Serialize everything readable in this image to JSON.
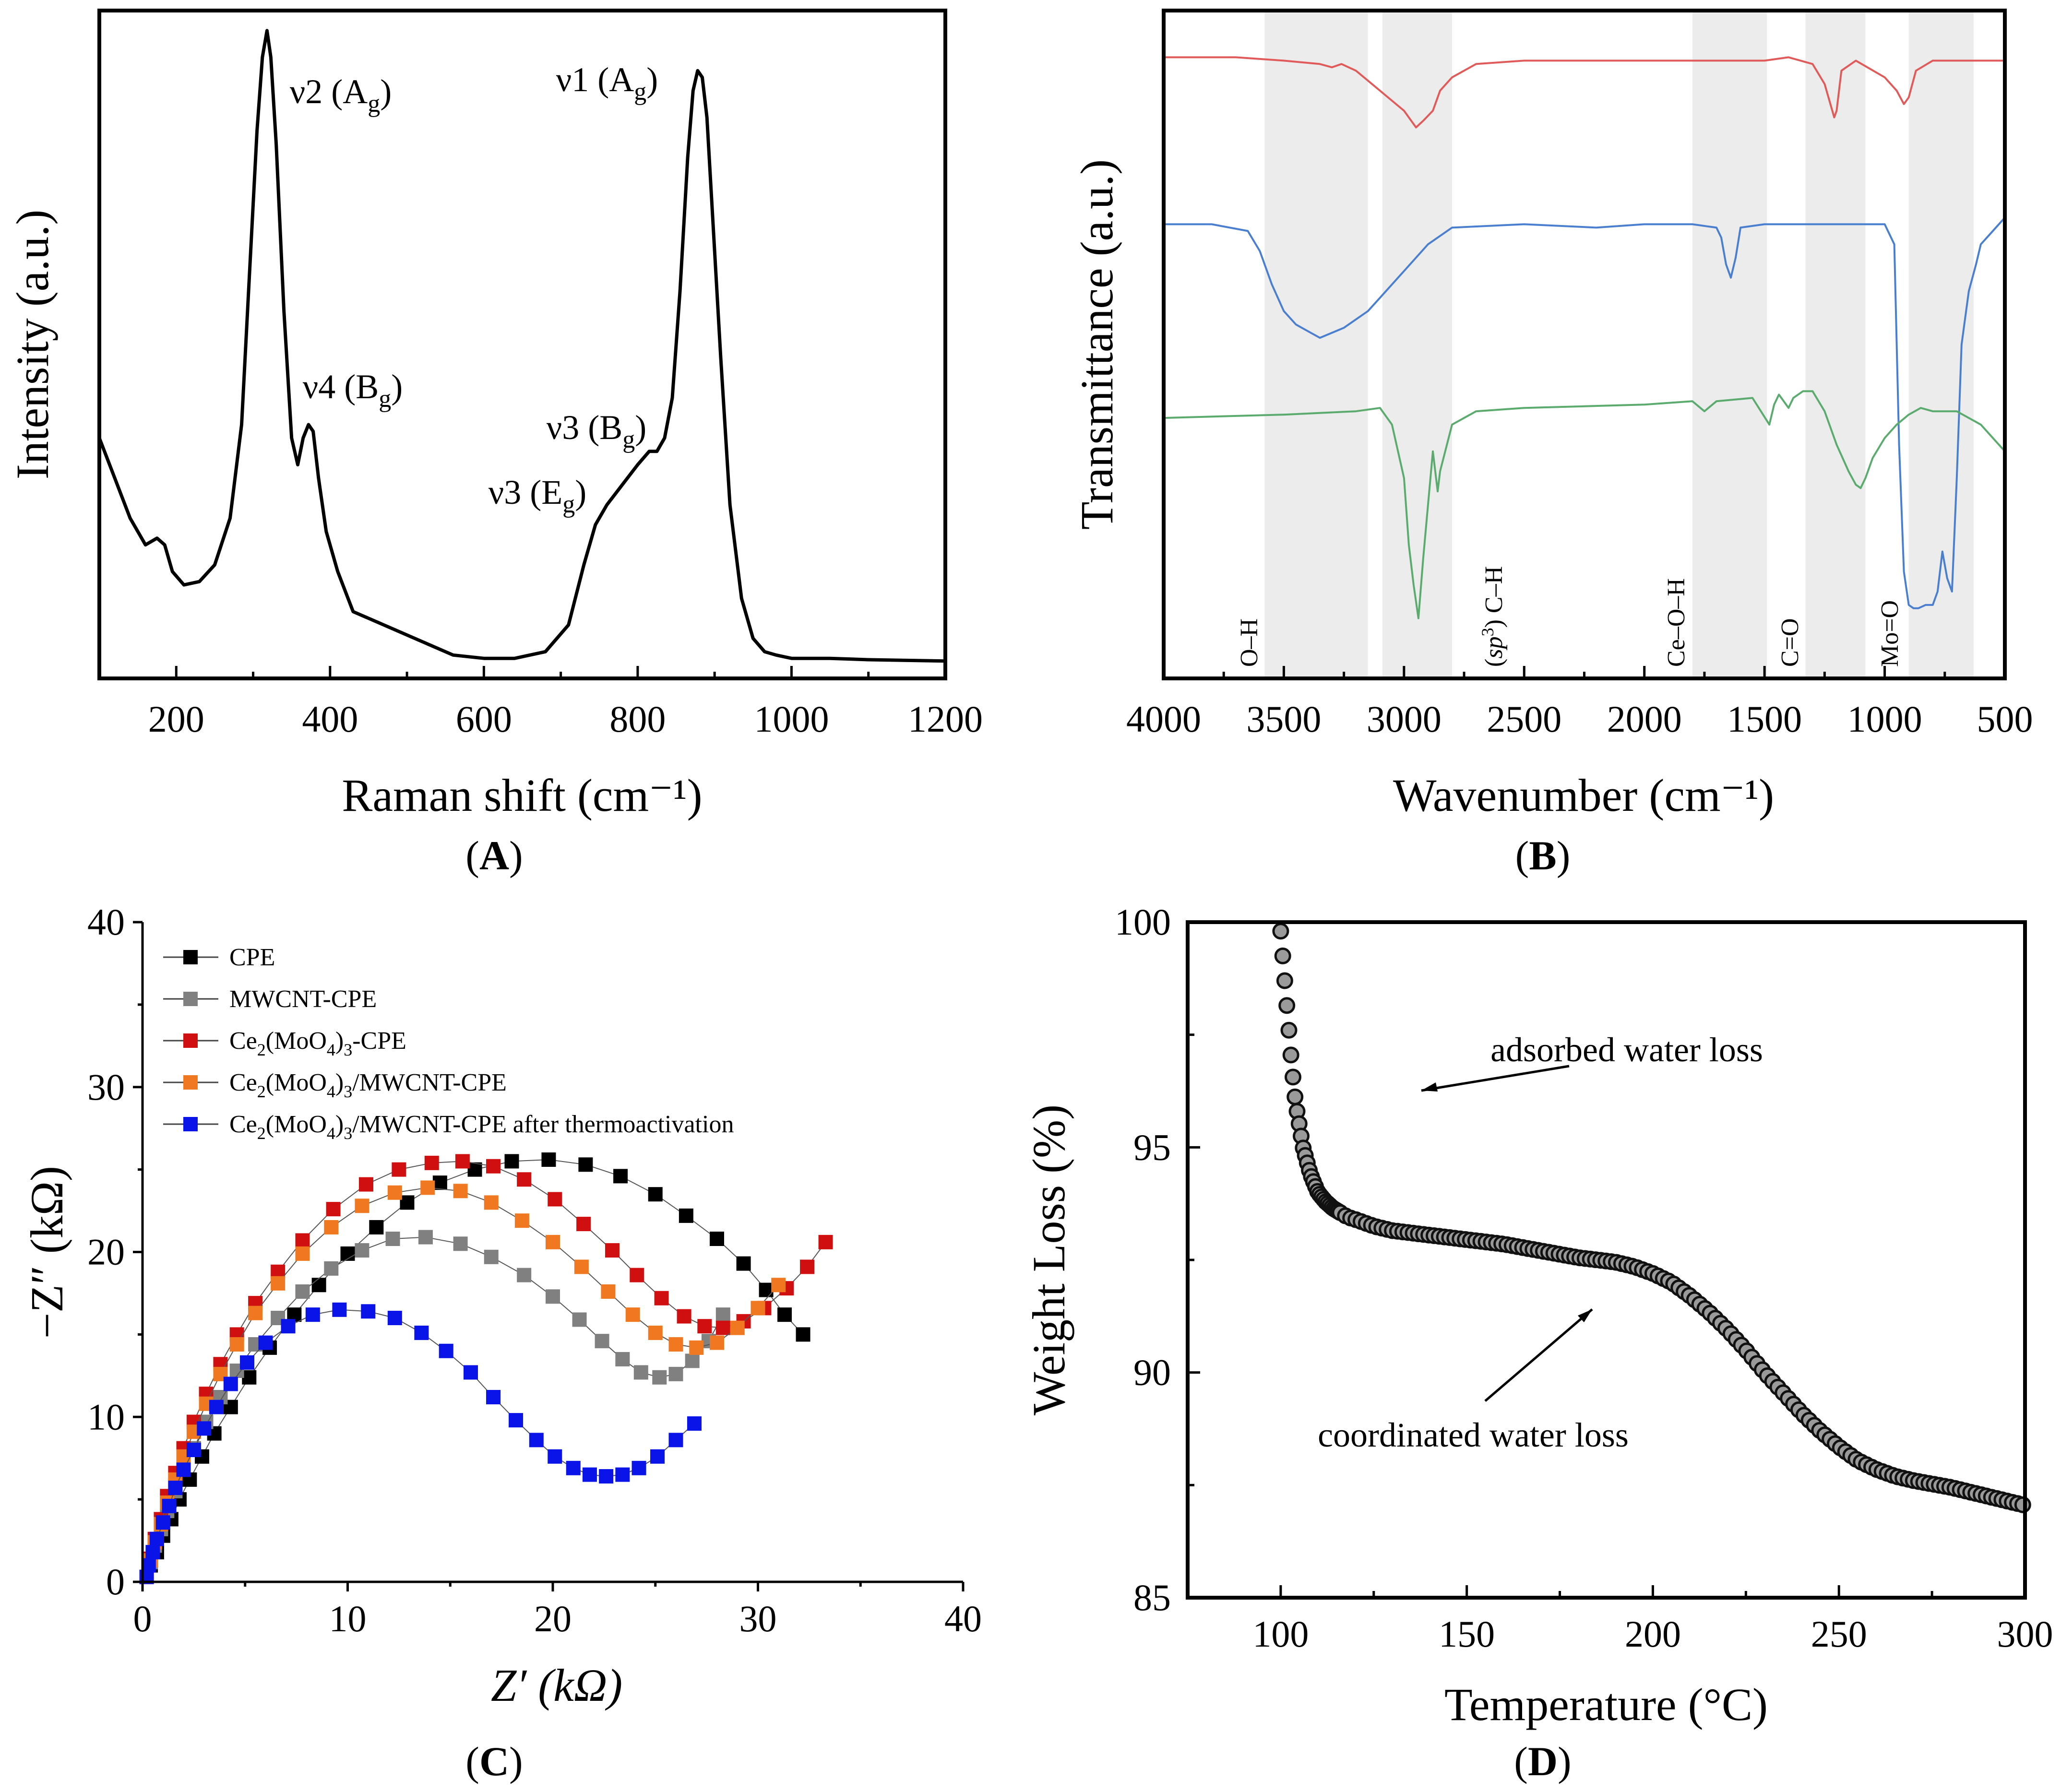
{
  "chart_data": [
    {
      "id": "A",
      "type": "line",
      "panel_label": "A",
      "xlabel": "Raman shift (cm⁻¹)",
      "ylabel": "Intensity (a.u.)",
      "xlim": [
        100,
        1200
      ],
      "ylim": [
        0,
        100
      ],
      "xticks": [
        "200",
        "400",
        "600",
        "800",
        "1000",
        "1200"
      ],
      "series": [
        {
          "name": "Raman",
          "color": "#000000",
          "x": [
            100,
            120,
            140,
            160,
            175,
            185,
            195,
            210,
            230,
            250,
            270,
            285,
            295,
            305,
            312,
            318,
            323,
            330,
            340,
            350,
            358,
            365,
            372,
            378,
            385,
            395,
            410,
            430,
            450,
            480,
            520,
            560,
            600,
            640,
            680,
            710,
            730,
            745,
            760,
            780,
            800,
            815,
            825,
            835,
            845,
            855,
            865,
            872,
            878,
            884,
            890,
            898,
            908,
            920,
            935,
            950,
            965,
            980,
            1000,
            1050,
            1100,
            1150,
            1200
          ],
          "y": [
            36,
            30,
            24,
            20,
            21,
            20,
            16,
            14,
            14.5,
            17,
            24,
            38,
            60,
            82,
            93,
            97,
            93,
            80,
            55,
            36,
            32,
            36,
            38,
            37,
            30,
            22,
            16,
            10,
            9,
            7.5,
            5.5,
            3.5,
            3,
            3,
            4,
            8,
            17,
            23,
            26,
            29,
            32,
            34,
            34,
            36,
            42,
            58,
            78,
            88,
            91,
            90,
            84,
            68,
            48,
            26,
            12,
            6,
            4,
            3.5,
            3,
            3,
            2.8,
            2.7,
            2.6
          ]
        }
      ],
      "annotations": [
        {
          "base": "ν2 (A",
          "sub": "g",
          "close": ")"
        },
        {
          "base": "ν1 (A",
          "sub": "g",
          "close": ")"
        },
        {
          "base": "ν4 (B",
          "sub": "g",
          "close": ")"
        },
        {
          "base": "ν3 (B",
          "sub": "g",
          "close": ")"
        },
        {
          "base": "ν3 (E",
          "sub": "g",
          "close": ")"
        }
      ]
    },
    {
      "id": "B",
      "type": "line",
      "panel_label": "B",
      "xlabel": "Wavenumber (cm⁻¹)",
      "ylabel": "Transmittance (a.u.)",
      "xlim": [
        4000,
        500
      ],
      "ylim": [
        0,
        100
      ],
      "xticks": [
        "4000",
        "3500",
        "3000",
        "2500",
        "2000",
        "1500",
        "1000",
        "500"
      ],
      "bands": [
        {
          "label": "O–H",
          "from": 3580,
          "to": 3150
        },
        {
          "label": "(sp³) C–H",
          "from": 3090,
          "to": 2800
        },
        {
          "label": "Ce–O–H",
          "from": 1800,
          "to": 1490
        },
        {
          "label": "C=O",
          "from": 1330,
          "to": 1080
        },
        {
          "label": "Mo=O",
          "from": 900,
          "to": 630
        }
      ],
      "series": [
        {
          "name": "red spectrum",
          "color": "#e05a5a",
          "x": [
            4000,
            3700,
            3500,
            3350,
            3300,
            3260,
            3200,
            3100,
            3000,
            2950,
            2920,
            2880,
            2850,
            2800,
            2700,
            2500,
            2000,
            1700,
            1500,
            1400,
            1300,
            1250,
            1210,
            1200,
            1180,
            1120,
            1000,
            950,
            920,
            900,
            870,
            800,
            700,
            600,
            500
          ],
          "y": [
            93,
            93,
            92.5,
            92,
            91.5,
            92,
            91,
            88,
            85,
            82.5,
            83.5,
            85,
            88,
            90,
            92,
            92.5,
            92.5,
            92.5,
            92.5,
            93,
            92,
            89,
            84,
            85,
            91,
            92.5,
            90,
            88,
            86,
            87,
            91,
            92.5,
            92.5,
            92.5,
            92.5
          ]
        },
        {
          "name": "blue spectrum",
          "color": "#4a7fd0",
          "x": [
            4000,
            3800,
            3650,
            3600,
            3550,
            3500,
            3450,
            3400,
            3350,
            3250,
            3150,
            3100,
            3000,
            2900,
            2800,
            2500,
            2200,
            2000,
            1800,
            1700,
            1680,
            1660,
            1640,
            1620,
            1600,
            1500,
            1300,
            1100,
            1000,
            960,
            940,
            920,
            900,
            880,
            860,
            830,
            800,
            780,
            760,
            740,
            720,
            700,
            680,
            650,
            620,
            600,
            550,
            500
          ],
          "y": [
            68,
            68,
            67,
            64,
            59,
            55,
            53,
            52,
            51,
            52.5,
            55,
            57,
            61,
            65,
            67.5,
            68,
            67.5,
            68,
            68,
            67.5,
            66,
            62,
            60,
            63,
            67.5,
            68,
            68,
            68,
            68,
            65,
            35,
            16,
            11,
            10.5,
            10.5,
            11,
            11,
            13,
            19,
            15,
            13,
            30,
            50,
            58,
            62,
            65,
            67,
            69
          ]
        },
        {
          "name": "green spectrum",
          "color": "#5aab6d",
          "x": [
            4000,
            3500,
            3200,
            3100,
            3050,
            3000,
            2980,
            2960,
            2940,
            2920,
            2900,
            2880,
            2860,
            2850,
            2800,
            2700,
            2500,
            2000,
            1800,
            1750,
            1700,
            1550,
            1480,
            1460,
            1440,
            1400,
            1380,
            1340,
            1300,
            1250,
            1200,
            1150,
            1120,
            1100,
            1080,
            1050,
            1000,
            950,
            900,
            850,
            800,
            700,
            600,
            550,
            500
          ],
          "y": [
            39,
            39.5,
            40,
            40.5,
            38,
            30,
            20,
            14,
            9,
            18,
            26,
            34,
            28,
            31,
            38,
            40,
            40.5,
            41,
            41.5,
            40,
            41.5,
            42,
            38,
            41,
            42.5,
            40.5,
            42,
            43,
            43,
            40,
            35,
            31,
            29,
            28.5,
            30,
            33,
            36,
            38,
            39.5,
            40.5,
            40,
            40,
            38,
            36,
            34
          ]
        }
      ]
    },
    {
      "id": "C",
      "type": "scatter",
      "panel_label": "C",
      "xlabel": "Z′ (kΩ)",
      "ylabel": "−Z″ (kΩ)",
      "xlim": [
        0,
        40
      ],
      "ylim": [
        0,
        40
      ],
      "xticks": [
        "0",
        "10",
        "20",
        "30",
        "40"
      ],
      "yticks": [
        "0",
        "10",
        "20",
        "30",
        "40"
      ],
      "legend": [
        {
          "base": "CPE",
          "parts": [
            {
              "t": "CPE",
              "sub": false
            }
          ]
        },
        {
          "base": "MWCNT-CPE",
          "parts": [
            {
              "t": "MWCNT-CPE",
              "sub": false
            }
          ]
        },
        {
          "base": "Ce2(MoO4)3-CPE",
          "parts": [
            {
              "t": "Ce",
              "sub": false
            },
            {
              "t": "2",
              "sub": true
            },
            {
              "t": "(MoO",
              "sub": false
            },
            {
              "t": "4",
              "sub": true
            },
            {
              "t": ")",
              "sub": false
            },
            {
              "t": "3",
              "sub": true
            },
            {
              "t": "-CPE",
              "sub": false
            }
          ]
        },
        {
          "base": "Ce2(MoO4)3/MWCNT-CPE",
          "parts": [
            {
              "t": "Ce",
              "sub": false
            },
            {
              "t": "2",
              "sub": true
            },
            {
              "t": "(MoO",
              "sub": false
            },
            {
              "t": "4",
              "sub": true
            },
            {
              "t": ")",
              "sub": false
            },
            {
              "t": "3",
              "sub": true
            },
            {
              "t": "/MWCNT-CPE",
              "sub": false
            }
          ]
        },
        {
          "base": "Ce2(MoO4)3/MWCNT-CPE after thermoactivation",
          "parts": [
            {
              "t": "Ce",
              "sub": false
            },
            {
              "t": "2",
              "sub": true
            },
            {
              "t": "(MoO",
              "sub": false
            },
            {
              "t": "4",
              "sub": true
            },
            {
              "t": ")",
              "sub": false
            },
            {
              "t": "3",
              "sub": true
            },
            {
              "t": "/MWCNT-CPE after thermoactivation",
              "sub": false
            }
          ]
        }
      ],
      "series": [
        {
          "name": "CPE",
          "color": "#000000",
          "x": [
            0.2,
            0.4,
            0.7,
            1.0,
            1.4,
            1.8,
            2.3,
            2.9,
            3.5,
            4.3,
            5.2,
            6.2,
            7.4,
            8.6,
            10.0,
            11.4,
            12.9,
            14.5,
            16.2,
            18.0,
            19.8,
            21.6,
            23.3,
            25.0,
            26.5,
            28.0,
            29.3,
            30.4,
            31.3,
            32.2
          ],
          "y": [
            0.3,
            1.0,
            1.8,
            2.8,
            3.8,
            5.0,
            6.2,
            7.6,
            9.0,
            10.6,
            12.4,
            14.2,
            16.2,
            18.0,
            19.9,
            21.5,
            23.0,
            24.2,
            25.0,
            25.5,
            25.6,
            25.3,
            24.6,
            23.5,
            22.2,
            20.8,
            19.3,
            17.7,
            16.2,
            15.0
          ]
        },
        {
          "name": "MWCNT-CPE",
          "color": "#808080",
          "x": [
            0.2,
            0.4,
            0.6,
            0.9,
            1.2,
            1.6,
            2.0,
            2.5,
            3.1,
            3.8,
            4.6,
            5.5,
            6.6,
            7.8,
            9.2,
            10.7,
            12.2,
            13.8,
            15.5,
            17.0,
            18.6,
            20.0,
            21.3,
            22.4,
            23.4,
            24.3,
            25.2,
            26.0,
            26.8,
            27.6,
            28.3
          ],
          "y": [
            0.3,
            1.2,
            2.2,
            3.2,
            4.3,
            5.5,
            6.8,
            8.1,
            9.7,
            11.2,
            12.8,
            14.4,
            16.0,
            17.6,
            19.0,
            20.1,
            20.8,
            20.9,
            20.5,
            19.7,
            18.6,
            17.3,
            15.9,
            14.6,
            13.5,
            12.7,
            12.4,
            12.6,
            13.4,
            14.6,
            16.2
          ]
        },
        {
          "name": "Ce2(MoO4)3-CPE",
          "color": "#d01010",
          "x": [
            0.2,
            0.4,
            0.6,
            0.9,
            1.2,
            1.6,
            2.0,
            2.5,
            3.1,
            3.8,
            4.6,
            5.5,
            6.6,
            7.8,
            9.3,
            10.9,
            12.5,
            14.1,
            15.6,
            17.1,
            18.6,
            20.1,
            21.5,
            22.9,
            24.1,
            25.3,
            26.4,
            27.4,
            28.3,
            29.3,
            30.3,
            31.4,
            32.4,
            33.3
          ],
          "y": [
            0.3,
            1.4,
            2.6,
            3.8,
            5.2,
            6.6,
            8.1,
            9.7,
            11.4,
            13.2,
            15.0,
            16.9,
            18.8,
            20.7,
            22.6,
            24.1,
            25.0,
            25.4,
            25.5,
            25.2,
            24.4,
            23.2,
            21.7,
            20.1,
            18.6,
            17.2,
            16.1,
            15.5,
            15.4,
            15.8,
            16.6,
            17.8,
            19.1,
            20.6
          ]
        },
        {
          "name": "Ce2(MoO4)3/MWCNT-CPE",
          "color": "#f07820",
          "x": [
            0.2,
            0.4,
            0.6,
            0.9,
            1.2,
            1.6,
            2.0,
            2.5,
            3.1,
            3.8,
            4.6,
            5.5,
            6.6,
            7.8,
            9.2,
            10.7,
            12.3,
            13.9,
            15.5,
            17.0,
            18.5,
            20.0,
            21.4,
            22.7,
            23.9,
            25.0,
            26.0,
            27.0,
            28.0,
            29.0,
            30.0,
            31.0
          ],
          "y": [
            0.3,
            1.3,
            2.4,
            3.5,
            4.8,
            6.2,
            7.6,
            9.1,
            10.8,
            12.6,
            14.4,
            16.3,
            18.1,
            19.9,
            21.5,
            22.8,
            23.6,
            23.9,
            23.7,
            23.0,
            21.9,
            20.6,
            19.1,
            17.6,
            16.2,
            15.1,
            14.4,
            14.2,
            14.5,
            15.4,
            16.6,
            18.0
          ]
        },
        {
          "name": "Ce2(MoO4)3/MWCNT-CPE after thermoactivation",
          "color": "#0a14e8",
          "x": [
            0.2,
            0.3,
            0.5,
            0.7,
            1.0,
            1.3,
            1.6,
            2.0,
            2.5,
            3.0,
            3.6,
            4.3,
            5.1,
            6.0,
            7.1,
            8.3,
            9.6,
            11.0,
            12.3,
            13.6,
            14.8,
            16.0,
            17.1,
            18.2,
            19.2,
            20.1,
            21.0,
            21.8,
            22.6,
            23.4,
            24.2,
            25.1,
            26.0,
            26.9
          ],
          "y": [
            0.3,
            1.0,
            1.8,
            2.6,
            3.6,
            4.6,
            5.7,
            6.8,
            8.0,
            9.3,
            10.6,
            12.0,
            13.3,
            14.5,
            15.5,
            16.2,
            16.5,
            16.4,
            16.0,
            15.1,
            14.0,
            12.7,
            11.2,
            9.8,
            8.6,
            7.6,
            6.9,
            6.5,
            6.4,
            6.5,
            6.9,
            7.6,
            8.6,
            9.6
          ]
        }
      ]
    },
    {
      "id": "D",
      "type": "scatter",
      "panel_label": "D",
      "xlabel": "Temperature (°C)",
      "ylabel": "Weight Loss (%)",
      "xlim": [
        75,
        300
      ],
      "ylim": [
        85,
        100
      ],
      "xticks": [
        "100",
        "150",
        "200",
        "250",
        "300"
      ],
      "yticks": [
        "85",
        "90",
        "95",
        "100"
      ],
      "annotations": [
        "adsorbed water loss",
        "coordinated water loss"
      ],
      "curve": {
        "x": [
          100,
          101,
          102,
          103,
          104,
          106,
          108,
          110,
          112,
          114,
          116,
          118,
          120,
          125,
          130,
          140,
          150,
          160,
          170,
          180,
          190,
          195,
          200,
          205,
          210,
          215,
          220,
          225,
          230,
          235,
          240,
          245,
          250,
          255,
          260,
          265,
          270,
          280,
          290,
          300
        ],
        "y": [
          99.8,
          98.8,
          97.8,
          96.8,
          96.0,
          95.0,
          94.4,
          94.0,
          93.8,
          93.65,
          93.55,
          93.45,
          93.4,
          93.25,
          93.15,
          93.05,
          92.95,
          92.85,
          92.7,
          92.55,
          92.45,
          92.35,
          92.2,
          92.0,
          91.7,
          91.35,
          90.95,
          90.5,
          90.0,
          89.55,
          89.1,
          88.7,
          88.35,
          88.05,
          87.85,
          87.7,
          87.6,
          87.45,
          87.25,
          87.05
        ]
      }
    }
  ]
}
